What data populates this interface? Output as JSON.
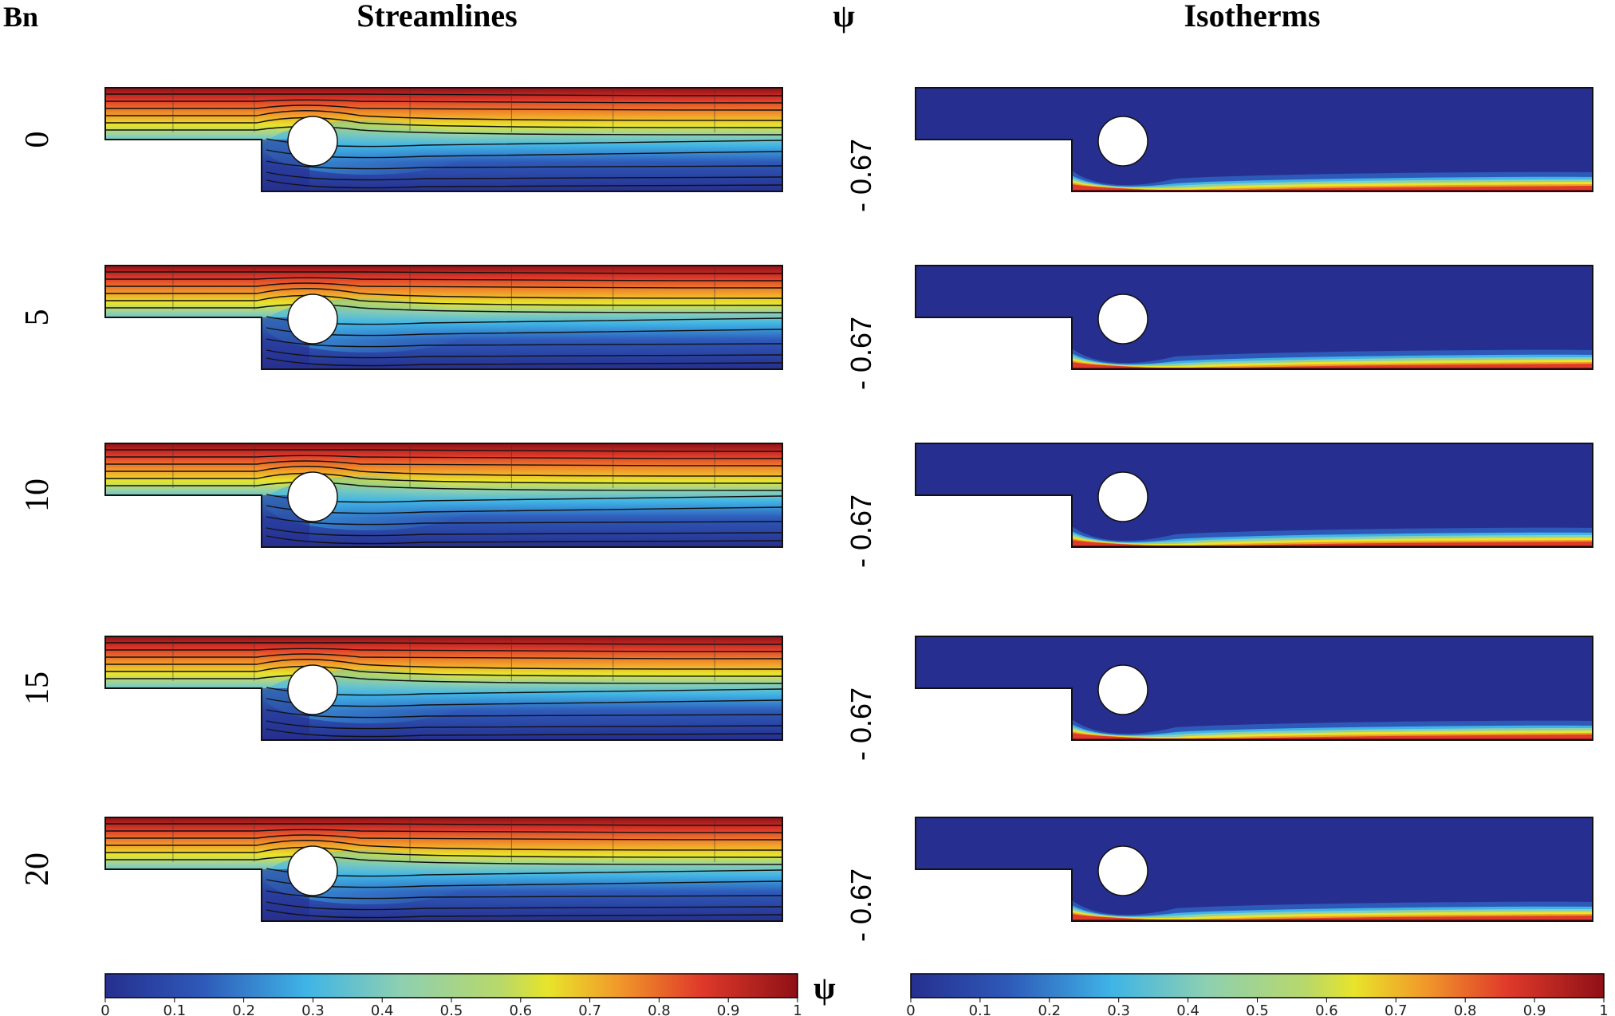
{
  "headers": {
    "bn": "Bn",
    "streamlines": "Streamlines",
    "psi": "ψ",
    "isotherms": "Isotherms"
  },
  "rows": [
    {
      "bn": "0",
      "psi_value": "- 0.67"
    },
    {
      "bn": "5",
      "psi_value": "- 0.67"
    },
    {
      "bn": "10",
      "psi_value": "- 0.67"
    },
    {
      "bn": "15",
      "psi_value": "- 0.67"
    },
    {
      "bn": "20",
      "psi_value": "- 0.67"
    }
  ],
  "colorbars": {
    "streamlines": {
      "min": 0,
      "max": 1,
      "ticks": [
        "0",
        "0.1",
        "0.2",
        "0.3",
        "0.4",
        "0.5",
        "0.6",
        "0.7",
        "0.8",
        "0.9",
        "1"
      ],
      "symbol": "ψ"
    },
    "isotherms": {
      "min": 0,
      "max": 1,
      "ticks": [
        "0",
        "0.1",
        "0.2",
        "0.3",
        "0.4",
        "0.5",
        "0.6",
        "0.7",
        "0.8",
        "0.9",
        "1"
      ]
    }
  },
  "colormap": [
    "#262f8f",
    "#2e59b8",
    "#3fb4e6",
    "#8fd0b0",
    "#e8e42a",
    "#f19a2a",
    "#e03a2a",
    "#8f1016"
  ]
}
